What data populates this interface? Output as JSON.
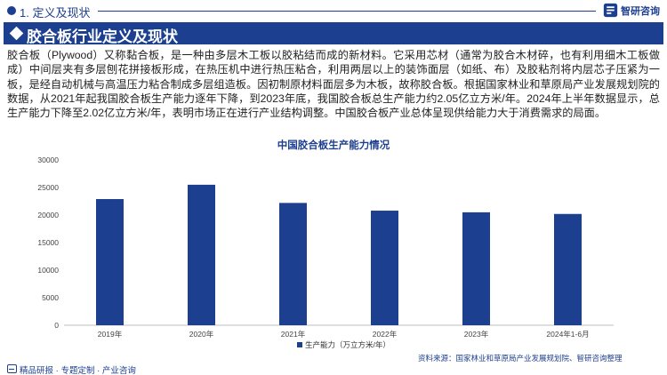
{
  "header": {
    "section_label": "1. 定义及现状",
    "brand_name": "智研咨询",
    "brand_icon": "zhiyan-logo-icon"
  },
  "title_bar": {
    "title": "胶合板行业定义及现状"
  },
  "intro": {
    "paragraph": "胶合板（Plywood）又称黏合板，是一种由多层木工板以胶粘结而成的新材料。它采用芯材（通常为胶合木材碎，也有利用细木工板做成）中间层夹有多层刨花拼接板形成，在热压机中进行热压粘合，利用两层以上的装饰面层（如纸、布）及胶粘剂将内层芯子压紧为一板，是经自动机械与高温压力粘合制成多层组造板。因初制原材料面层多为木板，故称胶合板。根据国家林业和草原局产业发展规划院的数据，从2021年起我国胶合板生产能力逐年下降，到2023年底，我国胶合板总生产能力约2.05亿立方米/年。2024年上半年数据显示，总生产能力下降至2.02亿立方米/年，表明市场正在进行产业结构调整。中国胶合板产业总体呈现供给能力大于消费需求的局面。"
  },
  "chart_data": {
    "type": "bar",
    "title": "中国胶合板生产能力情况",
    "categories": [
      "2019年",
      "2020年",
      "2021年",
      "2022年",
      "2023年",
      "2024年1-6月"
    ],
    "series": [
      {
        "name": "生产能力（万立方米/年）",
        "values": [
          22900,
          25500,
          22200,
          20800,
          20500,
          20200
        ],
        "color": "#1d3f8f"
      }
    ],
    "y_ticks": [
      "0",
      "5000",
      "10000",
      "15000",
      "20000",
      "25000",
      "30000"
    ],
    "ylim": [
      0,
      30000
    ],
    "xlabel": "",
    "ylabel": "",
    "legend_position": "bottom-center",
    "grid": false
  },
  "source": {
    "text": "资料来源：国家林业和草原局产业发展规划院、智研咨询整理"
  },
  "footer": {
    "text": "精品研报 · 专题定制 · 产业咨询",
    "icon": "report-icon"
  },
  "colors": {
    "brand_blue": "#1d3f8f",
    "bar_blue": "#1d3f8f"
  }
}
